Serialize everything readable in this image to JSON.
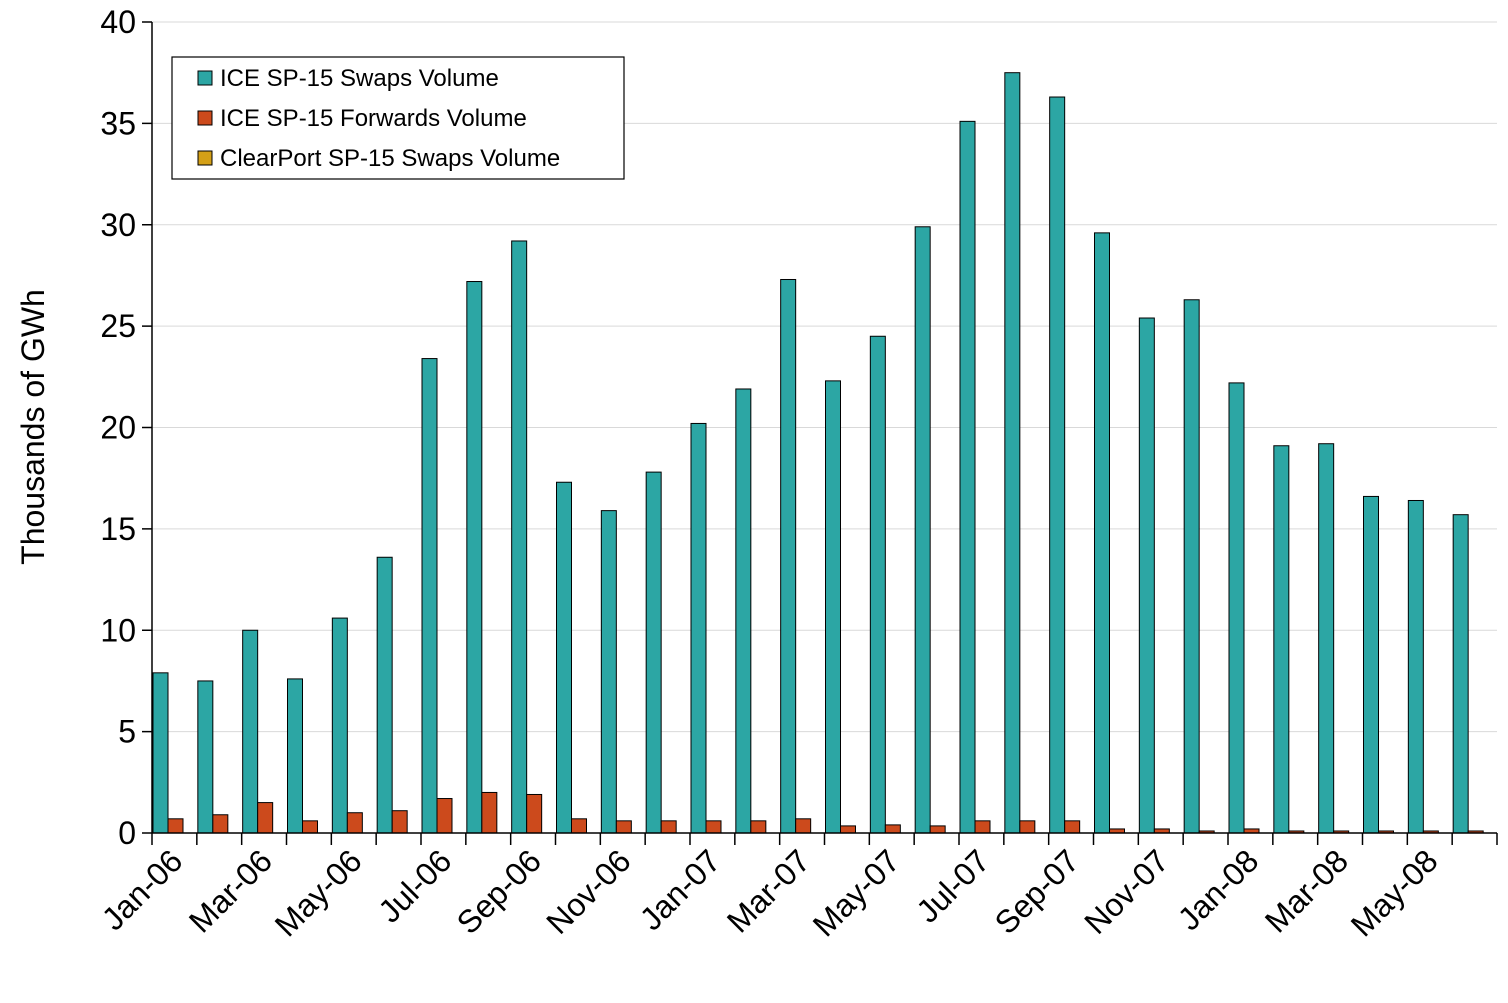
{
  "chart_data": {
    "type": "bar",
    "y_label": "Thousands of GWh",
    "categories": [
      "Jan-06",
      null,
      "Mar-06",
      null,
      "May-06",
      null,
      "Jul-06",
      null,
      "Sep-06",
      null,
      "Nov-06",
      null,
      "Jan-07",
      null,
      "Mar-07",
      null,
      "May-07",
      null,
      "Jul-07",
      null,
      "Sep-07",
      null,
      "Nov-07",
      null,
      "Jan-08",
      null,
      "Mar-08",
      null,
      "May-08",
      null
    ],
    "series": [
      {
        "name": "ICE SP-15 Swaps Volume",
        "color": "#2ca6a4",
        "values": [
          7.9,
          7.5,
          10.0,
          7.6,
          10.6,
          13.6,
          23.4,
          27.2,
          29.2,
          17.3,
          15.9,
          17.8,
          20.2,
          21.9,
          27.3,
          22.3,
          24.5,
          29.9,
          35.1,
          37.5,
          36.3,
          29.6,
          25.4,
          26.3,
          22.2,
          19.1,
          19.2,
          16.6,
          16.4,
          15.7
        ]
      },
      {
        "name": "ICE SP-15 Forwards Volume",
        "color": "#cc4a1c",
        "values": [
          0.7,
          0.9,
          1.5,
          0.6,
          1.0,
          1.1,
          1.7,
          2.0,
          1.9,
          0.7,
          0.6,
          0.6,
          0.6,
          0.6,
          0.7,
          0.35,
          0.4,
          0.35,
          0.6,
          0.6,
          0.6,
          0.2,
          0.2,
          0.1,
          0.2,
          0.1,
          0.1,
          0.1,
          0.1,
          0.1
        ]
      },
      {
        "name": "ClearPort SP-15 Swaps Volume",
        "color": "#d4a017",
        "values": [
          0,
          0,
          0,
          0,
          0,
          0,
          0,
          0,
          0,
          0,
          0,
          0,
          0,
          0,
          0,
          0,
          0,
          0,
          0,
          0,
          0,
          0,
          0,
          0,
          0,
          0,
          0,
          0,
          0,
          0
        ]
      }
    ],
    "ylim": [
      0,
      40
    ],
    "yticks": [
      0,
      5,
      10,
      15,
      20,
      25,
      30,
      35,
      40
    ],
    "grid": true,
    "legend": "top-left"
  }
}
